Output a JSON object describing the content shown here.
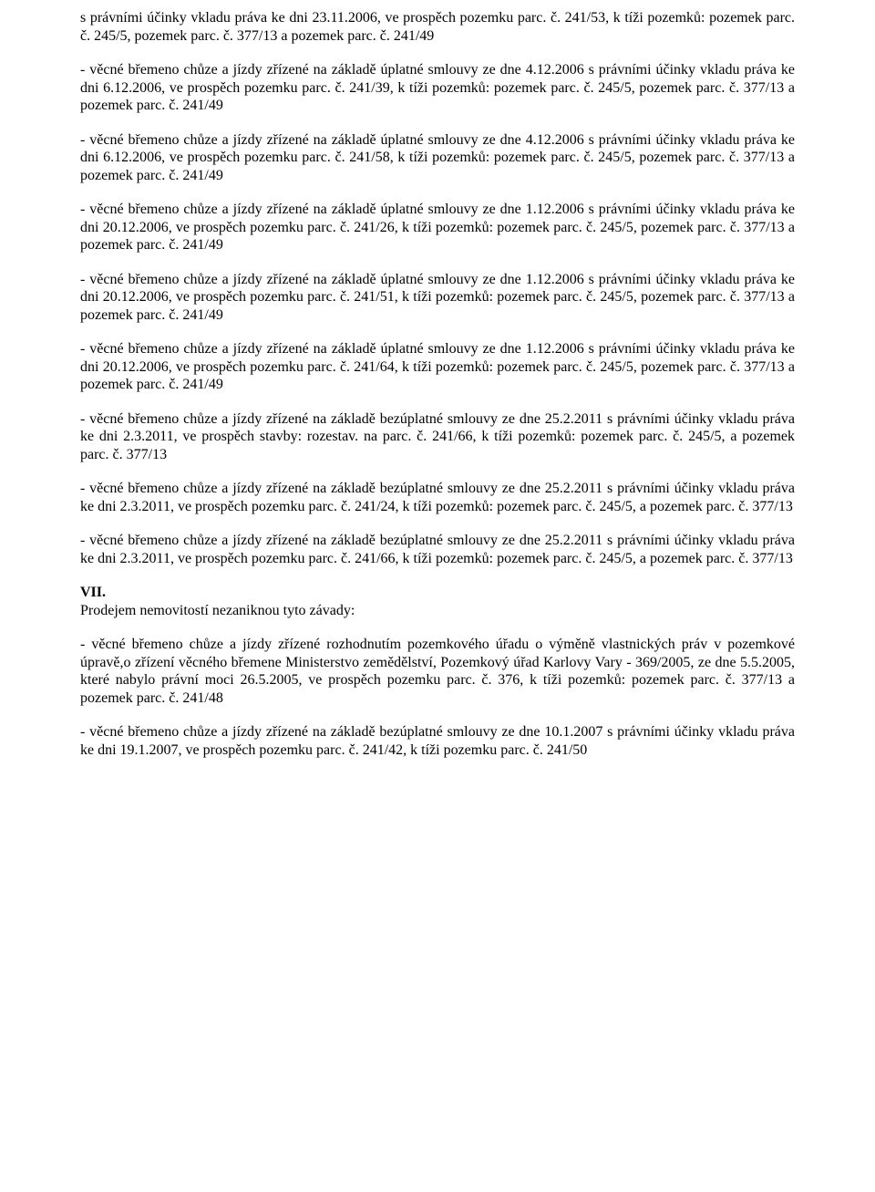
{
  "paragraphs": {
    "p0": "s právními účinky vkladu práva ke dni 23.11.2006, ve prospěch pozemku parc. č. 241/53, k tíži pozemků: pozemek parc. č. 245/5,  pozemek parc. č. 377/13 a  pozemek parc. č. 241/49",
    "p1": "   - věcné břemeno chůze a jízdy zřízené na základě úplatné smlouvy ze dne 4.12.2006 s právními účinky vkladu práva ke dni 6.12.2006, ve prospěch pozemku parc. č. 241/39, k tíži pozemků: pozemek parc. č. 245/5,  pozemek parc. č. 377/13 a  pozemek parc. č. 241/49",
    "p2": "   - věcné břemeno chůze a jízdy zřízené na základě úplatné smlouvy ze dne 4.12.2006 s právními účinky vkladu práva ke dni 6.12.2006, ve prospěch pozemku parc. č. 241/58, k tíži pozemků: pozemek parc. č. 245/5,  pozemek parc. č. 377/13 a  pozemek parc. č. 241/49",
    "p3": "   - věcné břemeno chůze a jízdy zřízené na základě úplatné smlouvy ze dne 1.12.2006 s právními účinky vkladu práva ke dni 20.12.2006, ve prospěch pozemku parc. č. 241/26, k tíži pozemků: pozemek parc. č. 245/5,  pozemek parc. č. 377/13 a  pozemek parc. č. 241/49",
    "p4": "   - věcné břemeno chůze a jízdy zřízené na základě úplatné smlouvy ze dne 1.12.2006 s právními účinky vkladu práva ke dni 20.12.2006, ve prospěch pozemku parc. č. 241/51, k tíži pozemků: pozemek parc. č. 245/5,  pozemek parc. č. 377/13 a  pozemek parc. č. 241/49",
    "p5": "   - věcné břemeno chůze a jízdy zřízené na základě úplatné smlouvy ze dne 1.12.2006 s právními účinky vkladu práva ke dni 20.12.2006, ve prospěch pozemku parc. č. 241/64, k tíži pozemků: pozemek parc. č. 245/5,  pozemek parc. č. 377/13 a  pozemek parc. č. 241/49",
    "p6": "   - věcné břemeno chůze a jízdy zřízené na základě bezúplatné smlouvy ze dne 25.2.2011 s právními účinky vkladu práva ke dni 2.3.2011, ve prospěch stavby: rozestav.  na  parc.  č. 241/66, k tíži pozemků: pozemek parc. č. 245/5, a  pozemek parc. č. 377/13",
    "p7": "   - věcné břemeno chůze a jízdy zřízené na základě bezúplatné smlouvy ze dne 25.2.2011 s právními účinky vkladu práva ke dni 2.3.2011, ve prospěch pozemku parc. č. 241/24, k tíži pozemků: pozemek parc. č. 245/5, a pozemek parc. č. 377/13",
    "p8": "   - věcné břemeno chůze a jízdy zřízené na základě bezúplatné smlouvy ze dne 25.2.2011 s právními účinky vkladu práva ke dni 2.3.2011, ve prospěch pozemku parc. č. 241/66, k tíži pozemků: pozemek parc. č. 245/5, a  pozemek parc. č. 377/13"
  },
  "section": {
    "heading": "VII.",
    "intro": "Prodejem nemovitostí nezaniknou tyto závady:",
    "items": {
      "i0": "- věcné břemeno chůze a jízdy zřízené rozhodnutím pozemkového úřadu o výměně vlastnických práv v pozemkové úpravě,o zřízení věcného břemene Ministerstvo zemědělství, Pozemkový úřad Karlovy Vary - 369/2005, ze dne 5.5.2005, které nabylo právní moci 26.5.2005, ve prospěch pozemku parc. č. 376, k tíži pozemků: pozemek parc. č. 377/13 a pozemek parc. č. 241/48",
      "i1": "- věcné břemeno chůze a jízdy zřízené na základě bezúplatné smlouvy ze dne 10.1.2007 s právními účinky vkladu práva ke dni 19.1.2007, ve prospěch pozemku parc. č. 241/42, k tíži pozemku parc. č. 241/50"
    }
  }
}
